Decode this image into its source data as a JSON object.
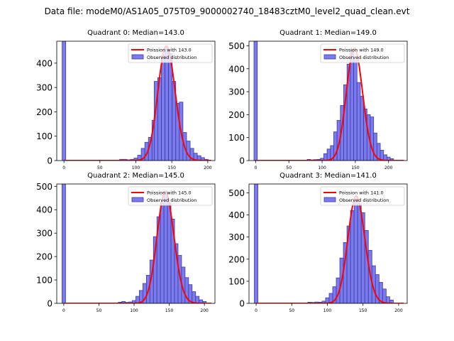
{
  "figure_title": "Data file: modeM0/AS1A05_075T09_9000002740_18483cztM0_level2_quad_clean.evt",
  "colors": {
    "bar_fill": "#7b7bee",
    "bar_edge": "#3a3aa6",
    "poisson_line": "#ff0000"
  },
  "chart_data": [
    {
      "type": "bar",
      "title": "Quadrant 0: Median=143.0",
      "median": 143.0,
      "xlim": [
        -10,
        210
      ],
      "ylim": [
        0,
        490
      ],
      "xticks": [
        0,
        50,
        100,
        150,
        200
      ],
      "yticks": [
        0,
        100,
        200,
        300,
        400
      ],
      "legend": {
        "placement": "top-right",
        "entries": [
          "Poission with 143.0",
          "Observed distribution"
        ]
      },
      "bin_width": 5,
      "bins": [
        {
          "x": 0,
          "count": 490
        },
        {
          "x": 80,
          "count": 5
        },
        {
          "x": 85,
          "count": 5
        },
        {
          "x": 90,
          "count": 3
        },
        {
          "x": 95,
          "count": 5
        },
        {
          "x": 100,
          "count": 10
        },
        {
          "x": 105,
          "count": 22
        },
        {
          "x": 110,
          "count": 50
        },
        {
          "x": 115,
          "count": 75
        },
        {
          "x": 120,
          "count": 95
        },
        {
          "x": 125,
          "count": 165
        },
        {
          "x": 128,
          "count": 325
        },
        {
          "x": 133,
          "count": 340
        },
        {
          "x": 138,
          "count": 430
        },
        {
          "x": 143,
          "count": 465
        },
        {
          "x": 148,
          "count": 440
        },
        {
          "x": 153,
          "count": 325
        },
        {
          "x": 158,
          "count": 235
        },
        {
          "x": 163,
          "count": 240
        },
        {
          "x": 168,
          "count": 115
        },
        {
          "x": 173,
          "count": 80
        },
        {
          "x": 178,
          "count": 50
        },
        {
          "x": 183,
          "count": 30
        },
        {
          "x": 188,
          "count": 20
        },
        {
          "x": 193,
          "count": 12
        },
        {
          "x": 198,
          "count": 5
        }
      ],
      "poisson_peak": 470
    },
    {
      "type": "bar",
      "title": "Quadrant 1: Median=149.0",
      "median": 149.0,
      "xlim": [
        -10,
        228
      ],
      "ylim": [
        0,
        520
      ],
      "xticks": [
        0,
        50,
        100,
        150,
        200
      ],
      "yticks": [
        0,
        100,
        200,
        300,
        400,
        500
      ],
      "legend": {
        "placement": "top-right",
        "entries": [
          "Poission with 149.0",
          "Observed distribution"
        ]
      },
      "bin_width": 5,
      "bins": [
        {
          "x": 0,
          "count": 520
        },
        {
          "x": 80,
          "count": 5
        },
        {
          "x": 85,
          "count": 3
        },
        {
          "x": 90,
          "count": 4
        },
        {
          "x": 95,
          "count": 5
        },
        {
          "x": 100,
          "count": 10
        },
        {
          "x": 105,
          "count": 30
        },
        {
          "x": 110,
          "count": 50
        },
        {
          "x": 115,
          "count": 65
        },
        {
          "x": 120,
          "count": 125
        },
        {
          "x": 125,
          "count": 175
        },
        {
          "x": 130,
          "count": 240
        },
        {
          "x": 135,
          "count": 330
        },
        {
          "x": 140,
          "count": 420
        },
        {
          "x": 145,
          "count": 480
        },
        {
          "x": 150,
          "count": 440
        },
        {
          "x": 155,
          "count": 340
        },
        {
          "x": 160,
          "count": 280
        },
        {
          "x": 165,
          "count": 225
        },
        {
          "x": 170,
          "count": 200
        },
        {
          "x": 175,
          "count": 190
        },
        {
          "x": 180,
          "count": 120
        },
        {
          "x": 185,
          "count": 75
        },
        {
          "x": 190,
          "count": 45
        },
        {
          "x": 195,
          "count": 25
        },
        {
          "x": 200,
          "count": 15
        },
        {
          "x": 205,
          "count": 8
        }
      ],
      "poisson_peak": 490
    },
    {
      "type": "bar",
      "title": "Quadrant 2: Median=145.0",
      "median": 145.0,
      "xlim": [
        -10,
        215
      ],
      "ylim": [
        0,
        510
      ],
      "xticks": [
        0,
        50,
        100,
        150,
        200
      ],
      "yticks": [
        0,
        100,
        200,
        300,
        400,
        500
      ],
      "legend": {
        "placement": "top-right",
        "entries": [
          "Poission with 145.0",
          "Observed distribution"
        ]
      },
      "bin_width": 5,
      "bins": [
        {
          "x": 0,
          "count": 510
        },
        {
          "x": 80,
          "count": 5
        },
        {
          "x": 85,
          "count": 8
        },
        {
          "x": 90,
          "count": 4
        },
        {
          "x": 95,
          "count": 6
        },
        {
          "x": 100,
          "count": 12
        },
        {
          "x": 105,
          "count": 30
        },
        {
          "x": 110,
          "count": 55
        },
        {
          "x": 115,
          "count": 85
        },
        {
          "x": 120,
          "count": 120
        },
        {
          "x": 125,
          "count": 185
        },
        {
          "x": 130,
          "count": 285
        },
        {
          "x": 135,
          "count": 370
        },
        {
          "x": 140,
          "count": 430
        },
        {
          "x": 145,
          "count": 480
        },
        {
          "x": 150,
          "count": 430
        },
        {
          "x": 155,
          "count": 360
        },
        {
          "x": 160,
          "count": 255
        },
        {
          "x": 165,
          "count": 205
        },
        {
          "x": 170,
          "count": 155
        },
        {
          "x": 175,
          "count": 110
        },
        {
          "x": 180,
          "count": 80
        },
        {
          "x": 185,
          "count": 50
        },
        {
          "x": 190,
          "count": 30
        },
        {
          "x": 195,
          "count": 15
        },
        {
          "x": 200,
          "count": 8
        }
      ],
      "poisson_peak": 475
    },
    {
      "type": "bar",
      "title": "Quadrant 3: Median=141.0",
      "median": 141.0,
      "xlim": [
        -10,
        212
      ],
      "ylim": [
        0,
        540
      ],
      "xticks": [
        0,
        50,
        100,
        150,
        200
      ],
      "yticks": [
        0,
        100,
        200,
        300,
        400,
        500
      ],
      "legend": {
        "placement": "top-right",
        "entries": [
          "Poission with 141.0",
          "Observed distribution"
        ]
      },
      "bin_width": 5,
      "bins": [
        {
          "x": 0,
          "count": 540
        },
        {
          "x": 75,
          "count": 5
        },
        {
          "x": 80,
          "count": 4
        },
        {
          "x": 85,
          "count": 6
        },
        {
          "x": 90,
          "count": 5
        },
        {
          "x": 95,
          "count": 10
        },
        {
          "x": 100,
          "count": 25
        },
        {
          "x": 105,
          "count": 45
        },
        {
          "x": 110,
          "count": 75
        },
        {
          "x": 115,
          "count": 115
        },
        {
          "x": 120,
          "count": 205
        },
        {
          "x": 125,
          "count": 275
        },
        {
          "x": 130,
          "count": 350
        },
        {
          "x": 135,
          "count": 420
        },
        {
          "x": 140,
          "count": 470
        },
        {
          "x": 145,
          "count": 450
        },
        {
          "x": 150,
          "count": 410
        },
        {
          "x": 155,
          "count": 330
        },
        {
          "x": 160,
          "count": 240
        },
        {
          "x": 165,
          "count": 170
        },
        {
          "x": 170,
          "count": 130
        },
        {
          "x": 175,
          "count": 95
        },
        {
          "x": 180,
          "count": 65
        },
        {
          "x": 185,
          "count": 30
        },
        {
          "x": 190,
          "count": 15
        }
      ],
      "poisson_peak": 485
    }
  ]
}
